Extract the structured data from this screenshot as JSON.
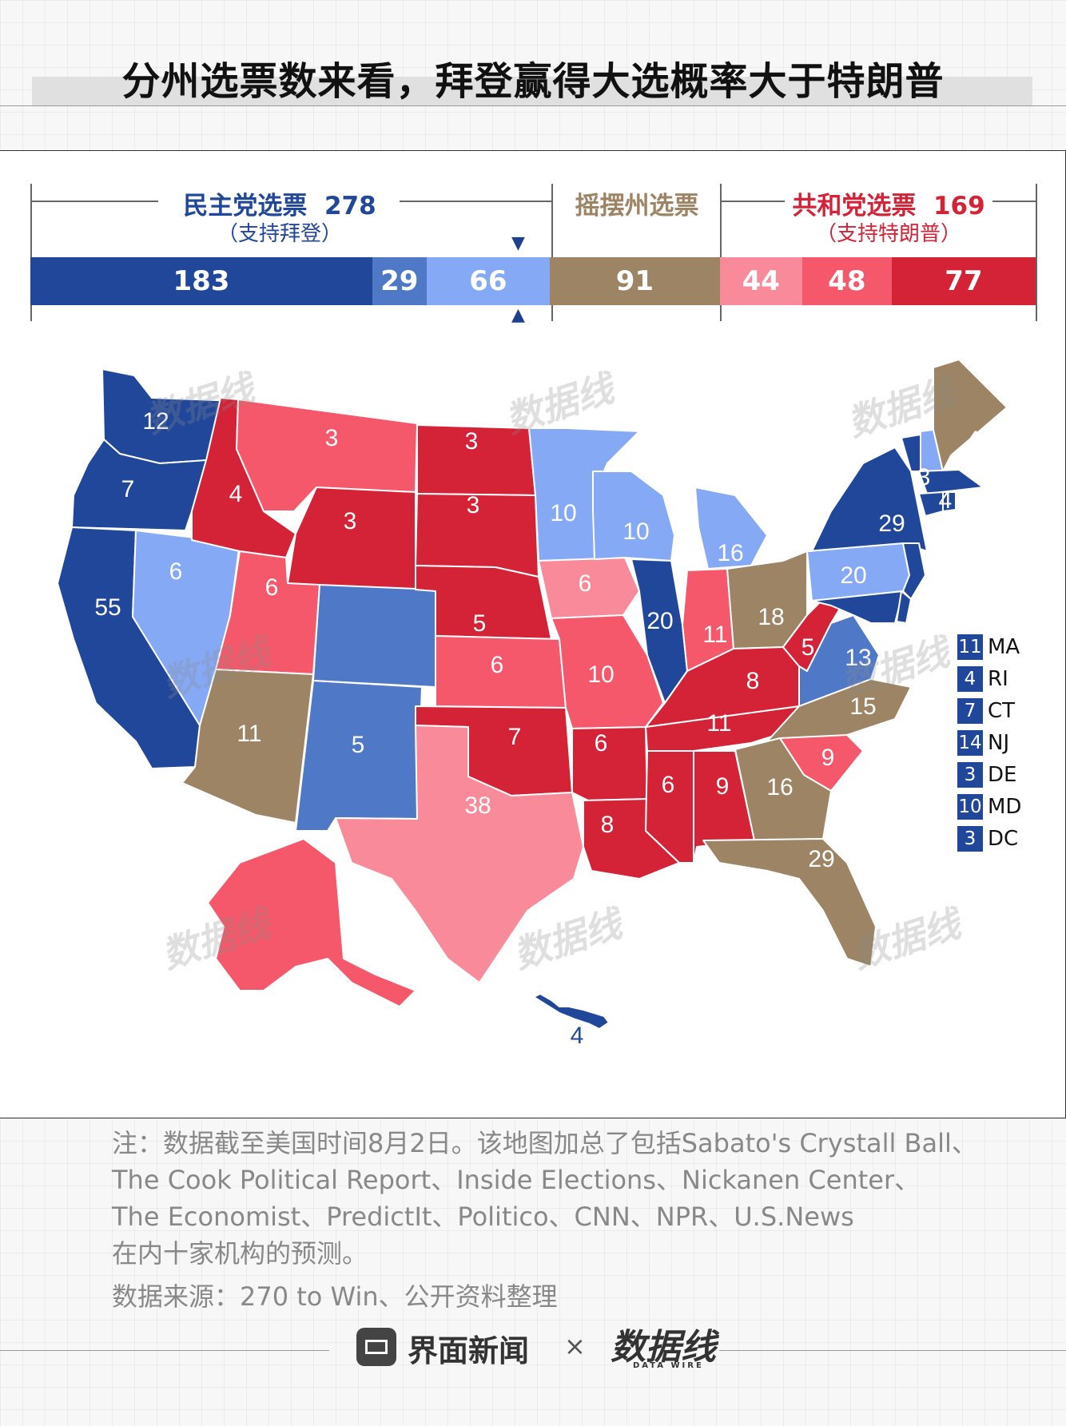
{
  "title": "分州选票数来看，拜登赢得大选概率大于特朗普",
  "summary": {
    "dem_label": "民主党选票",
    "dem_total": "278",
    "dem_sub": "（支持拜登）",
    "swing_label": "摇摆州选票",
    "rep_label": "共和党选票",
    "rep_total": "169",
    "rep_sub": "（支持特朗普）",
    "segments": [
      {
        "label": "183",
        "value": 183,
        "color": "#21479a"
      },
      {
        "label": "29",
        "value": 29,
        "color": "#4f78c6"
      },
      {
        "label": "66",
        "value": 66,
        "color": "#86a9f5"
      },
      {
        "label": "91",
        "value": 91,
        "color": "#9c8465"
      },
      {
        "label": "44",
        "value": 44,
        "color": "#f98a99"
      },
      {
        "label": "48",
        "value": 48,
        "color": "#f4586a"
      },
      {
        "label": "77",
        "value": 77,
        "color": "#d42237"
      }
    ]
  },
  "colors": {
    "solid_dem": "#21479a",
    "likely_dem": "#4f78c6",
    "lean_dem": "#86a9f5",
    "tossup": "#9c8465",
    "lean_rep": "#f98a99",
    "likely_rep": "#f4586a",
    "solid_rep": "#d42237"
  },
  "map_labels": [
    "12",
    "7",
    "55",
    "6",
    "4",
    "3",
    "3",
    "3",
    "3",
    "6",
    "11",
    "5",
    "5",
    "6",
    "7",
    "38",
    "10",
    "6",
    "10",
    "6",
    "8",
    "20",
    "10",
    "16",
    "11",
    "6",
    "9",
    "8",
    "11",
    "18",
    "5",
    "13",
    "16",
    "9",
    "29",
    "15",
    "20",
    "29",
    "3",
    "4",
    "4",
    "3",
    "4"
  ],
  "legend": [
    {
      "num": "11",
      "abbr": "MA"
    },
    {
      "num": "4",
      "abbr": "RI"
    },
    {
      "num": "7",
      "abbr": "CT"
    },
    {
      "num": "14",
      "abbr": "NJ"
    },
    {
      "num": "3",
      "abbr": "DE"
    },
    {
      "num": "10",
      "abbr": "MD"
    },
    {
      "num": "3",
      "abbr": "DC"
    }
  ],
  "notes": [
    "注：数据截至美国时间8月2日。该地图加总了包括Sabato's Crystall Ball、",
    "The Cook Political Report、Inside Elections、Nickanen Center、",
    "The Economist、PredictIt、Politico、CNN、NPR、U.S.News",
    "在内十家机构的预测。"
  ],
  "source": "数据来源：270 to Win、公开资料整理",
  "footer": {
    "brand1": "界面新闻",
    "times": "×",
    "brand2": "数据线",
    "brand2_sub": "DATA WIRE"
  },
  "watermark": "数据线"
}
